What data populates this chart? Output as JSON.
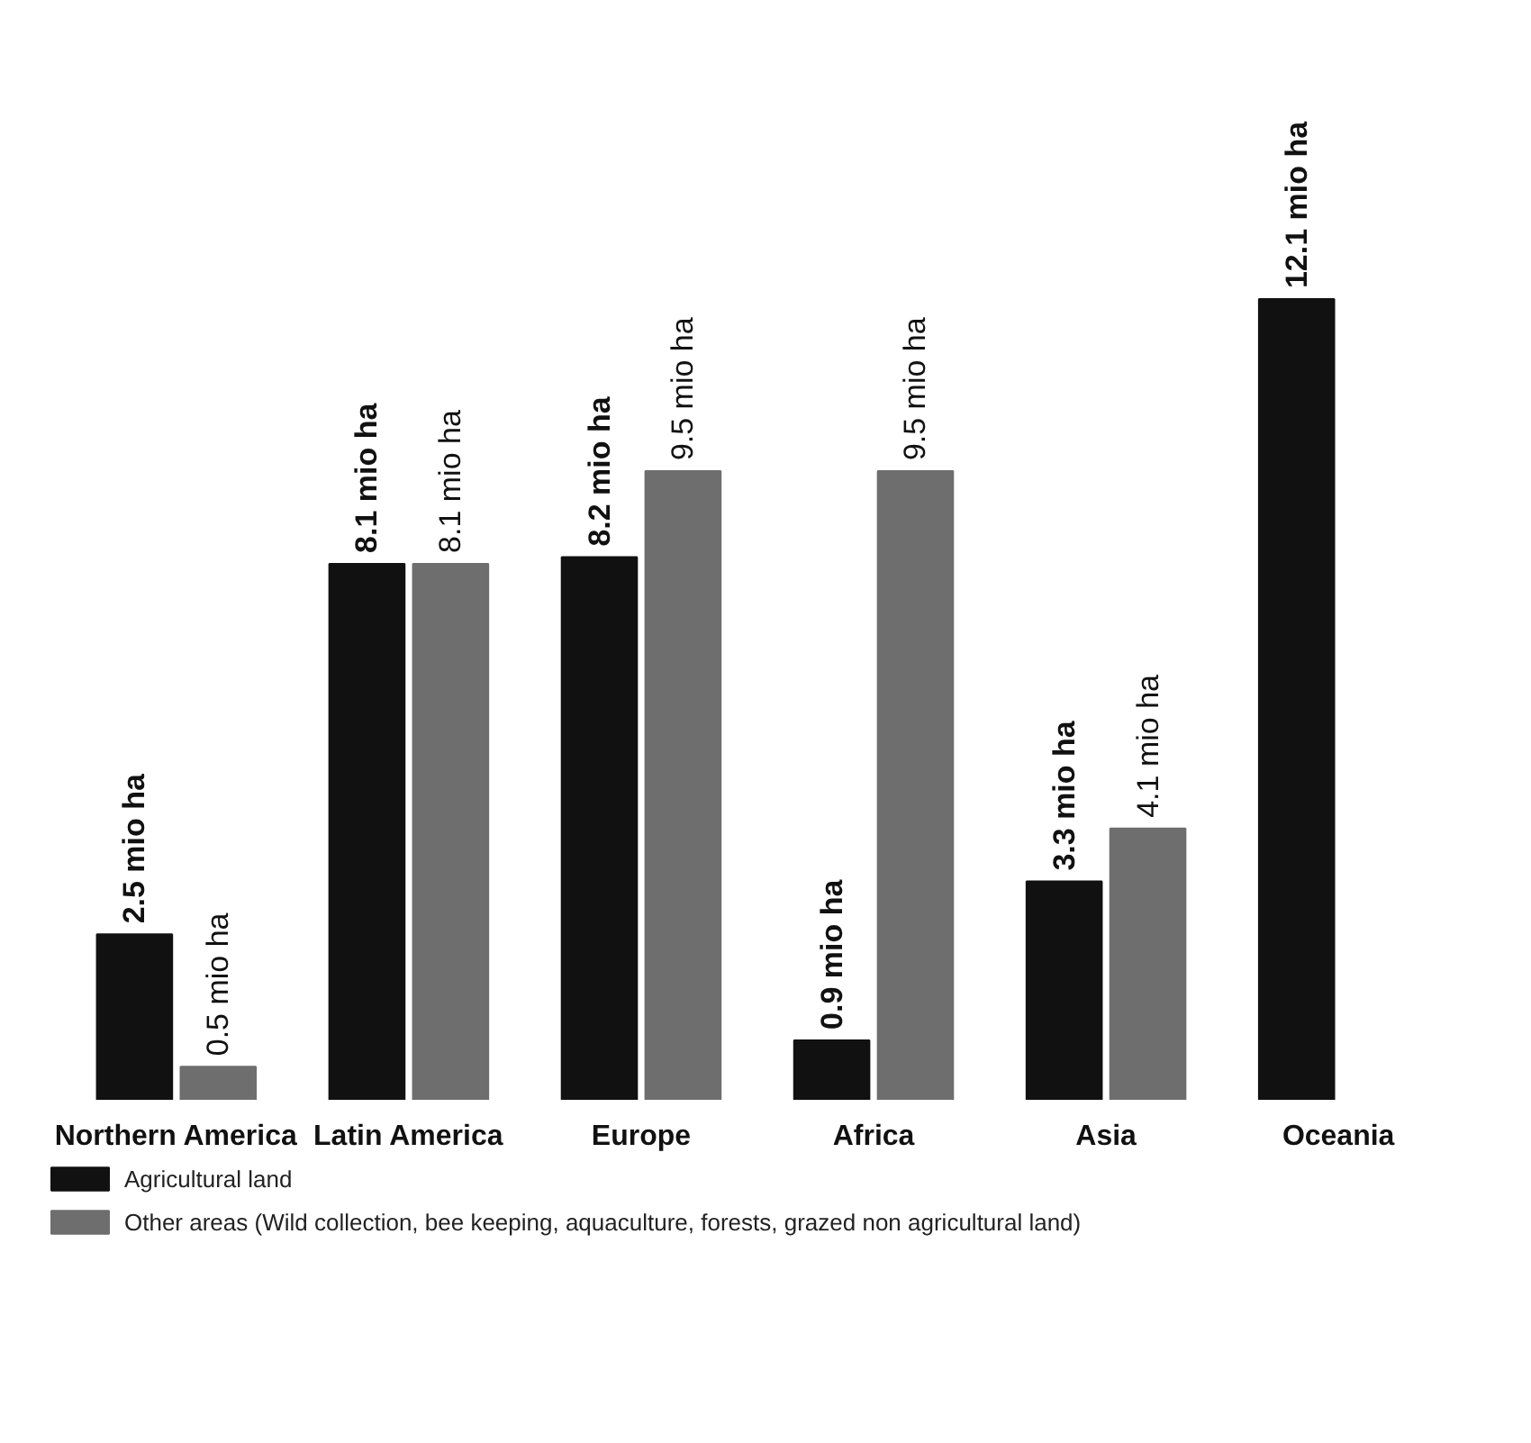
{
  "chart_data": {
    "type": "bar",
    "categories": [
      "Northern America",
      "Latin America",
      "Europe",
      "Africa",
      "Asia",
      "Oceania"
    ],
    "series": [
      {
        "name": "Agricultural land",
        "color": "#111111",
        "values": [
          2.5,
          8.1,
          8.2,
          0.9,
          3.3,
          12.1
        ],
        "value_labels": [
          "2.5 mio ha",
          "8.1 mio ha",
          "8.2 mio ha",
          "0.9 mio ha",
          "3.3 mio ha",
          "12.1 mio ha"
        ]
      },
      {
        "name": "Other areas (Wild collection, bee keeping, aquaculture, forests, grazed non agricultural land)",
        "color": "#6e6e6e",
        "values": [
          0.5,
          8.1,
          9.5,
          9.5,
          4.1,
          null
        ],
        "value_labels": [
          "0.5 mio ha",
          "8.1 mio ha",
          "9.5 mio ha",
          "9.5 mio ha",
          "4.1 mio ha",
          null
        ]
      }
    ],
    "tick_labels": "x",
    "legend": "bottom left"
  }
}
